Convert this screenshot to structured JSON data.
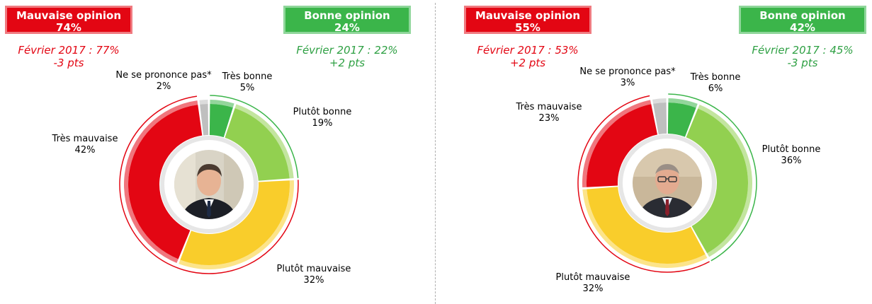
{
  "chart_data": [
    {
      "type": "pie",
      "title": "",
      "summary": {
        "bad": {
          "label": "Mauvaise opinion",
          "value": "74%",
          "color": "#e30613",
          "trend_line1": "Février 2017 : 77%",
          "trend_line2": "-3 pts"
        },
        "good": {
          "label": "Bonne opinion",
          "value": "24%",
          "color": "#3bb54a",
          "trend_line1": "Février 2017 : 22%",
          "trend_line2": "+2 pts"
        }
      },
      "categories": [
        "Très bonne",
        "Plutôt bonne",
        "Plutôt mauvaise",
        "Très mauvaise",
        "Ne se prononce pas*"
      ],
      "values": [
        5,
        19,
        32,
        42,
        2
      ],
      "value_labels": [
        "5%",
        "19%",
        "32%",
        "42%",
        "2%"
      ],
      "colors": [
        "#3bb54a",
        "#92d050",
        "#f9cd2b",
        "#e30613",
        "#bfbfbf"
      ],
      "portrait_icon": "portrait-francois-hollande"
    },
    {
      "type": "pie",
      "title": "",
      "summary": {
        "bad": {
          "label": "Mauvaise opinion",
          "value": "55%",
          "color": "#e30613",
          "trend_line1": "Février 2017 : 53%",
          "trend_line2": "+2 pts"
        },
        "good": {
          "label": "Bonne opinion",
          "value": "42%",
          "color": "#3bb54a",
          "trend_line1": "Février 2017 : 45%",
          "trend_line2": "-3 pts"
        }
      },
      "categories": [
        "Très bonne",
        "Plutôt bonne",
        "Plutôt mauvaise",
        "Très mauvaise",
        "Ne se prononce pas*"
      ],
      "values": [
        6,
        36,
        32,
        23,
        3
      ],
      "value_labels": [
        "6%",
        "36%",
        "32%",
        "23%",
        "3%"
      ],
      "colors": [
        "#3bb54a",
        "#92d050",
        "#f9cd2b",
        "#e30613",
        "#bfbfbf"
      ],
      "portrait_icon": "portrait-bernard-cazeneuve"
    }
  ]
}
